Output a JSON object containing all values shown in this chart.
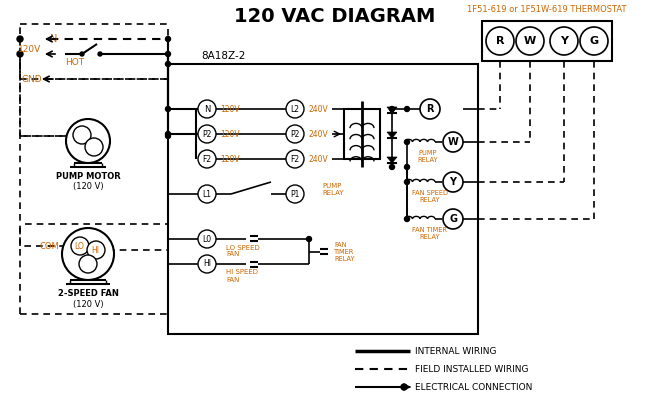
{
  "title": "120 VAC DIAGRAM",
  "title_fontsize": 14,
  "bg_color": "#ffffff",
  "line_color": "#000000",
  "orange_color": "#cc6600",
  "thermostat_label": "1F51-619 or 1F51W-619 THERMOSTAT",
  "box_label": "8A18Z-2",
  "figsize": [
    6.7,
    4.19
  ],
  "dpi": 100,
  "xlim": [
    0,
    670
  ],
  "ylim": [
    0,
    419
  ]
}
